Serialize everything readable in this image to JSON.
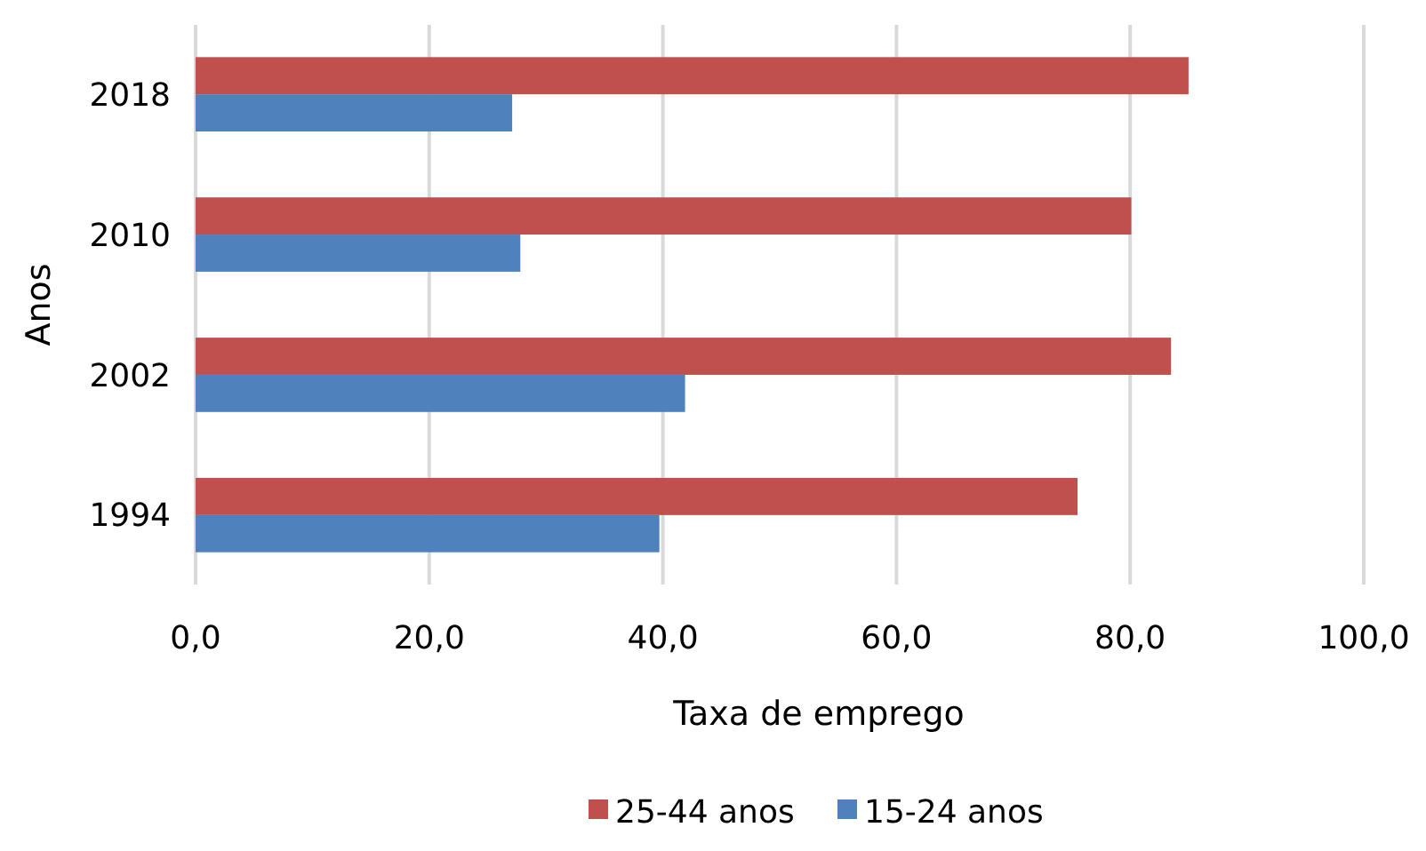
{
  "chart_data": {
    "type": "bar",
    "orientation": "horizontal",
    "xlabel": "Taxa de emprego",
    "ylabel": "Anos",
    "categories": [
      "2018",
      "2010",
      "2002",
      "1994"
    ],
    "series": [
      {
        "name": "25-44 anos",
        "color": "#c0504d",
        "values": [
          85.0,
          80.1,
          83.5,
          75.5
        ]
      },
      {
        "name": "15-24 anos",
        "color": "#4f81bd",
        "values": [
          27.1,
          27.8,
          41.9,
          39.7
        ]
      }
    ],
    "xlim": [
      0,
      100
    ],
    "xticks": [
      {
        "value": 0,
        "label": "0,0"
      },
      {
        "value": 20,
        "label": "20,0"
      },
      {
        "value": 40,
        "label": "40,0"
      },
      {
        "value": 60,
        "label": "60,0"
      },
      {
        "value": 80,
        "label": "80,0"
      },
      {
        "value": 100,
        "label": "100,0"
      }
    ],
    "grid": "x",
    "legend": "bottom"
  }
}
